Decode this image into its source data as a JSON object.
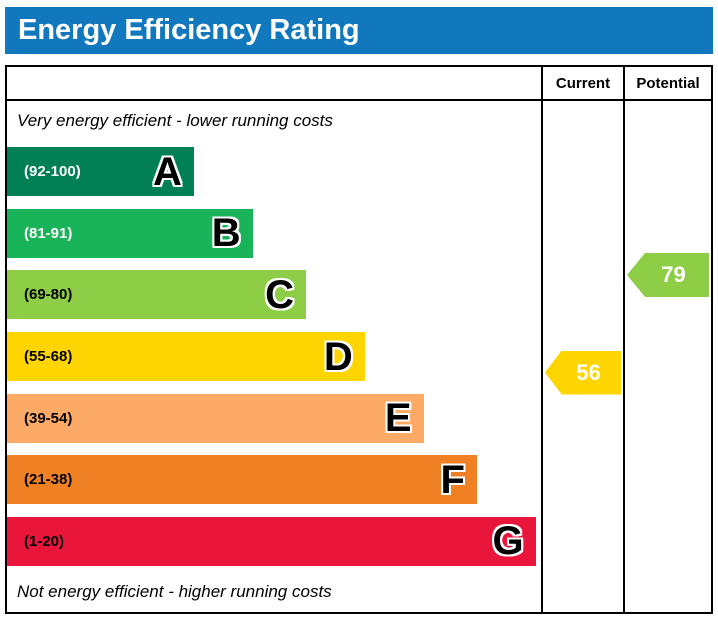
{
  "title": "Energy Efficiency Rating",
  "header": {
    "current": "Current",
    "potential": "Potential"
  },
  "top_note": "Very energy efficient - lower running costs",
  "bottom_note": "Not energy efficient - higher running costs",
  "chart_data": {
    "type": "bar",
    "title": "Energy Efficiency Rating",
    "legend_position": "none",
    "grid": false,
    "bands": [
      {
        "letter": "A",
        "range": "(92-100)",
        "range_min": 92,
        "range_max": 100,
        "color": "#008054",
        "text_color": "#ffffff",
        "width_pct": 35
      },
      {
        "letter": "B",
        "range": "(81-91)",
        "range_min": 81,
        "range_max": 91,
        "color": "#19b459",
        "text_color": "#ffffff",
        "width_pct": 46
      },
      {
        "letter": "C",
        "range": "(69-80)",
        "range_min": 69,
        "range_max": 80,
        "color": "#8dce46",
        "text_color": "#000000",
        "width_pct": 56
      },
      {
        "letter": "D",
        "range": "(55-68)",
        "range_min": 55,
        "range_max": 68,
        "color": "#ffd500",
        "text_color": "#000000",
        "width_pct": 67
      },
      {
        "letter": "E",
        "range": "(39-54)",
        "range_min": 39,
        "range_max": 54,
        "color": "#fcaa65",
        "text_color": "#000000",
        "width_pct": 78
      },
      {
        "letter": "F",
        "range": "(21-38)",
        "range_min": 21,
        "range_max": 38,
        "color": "#ef8023",
        "text_color": "#000000",
        "width_pct": 88
      },
      {
        "letter": "G",
        "range": "(1-20)",
        "range_min": 1,
        "range_max": 20,
        "color": "#e9153b",
        "text_color": "#000000",
        "width_pct": 99
      }
    ],
    "current": {
      "value": "56",
      "band": "D",
      "color": "#ffd500"
    },
    "potential": {
      "value": "79",
      "band": "C",
      "color": "#8dce46"
    }
  },
  "colors": {
    "title_bar": "#1278be",
    "border": "#000000"
  }
}
